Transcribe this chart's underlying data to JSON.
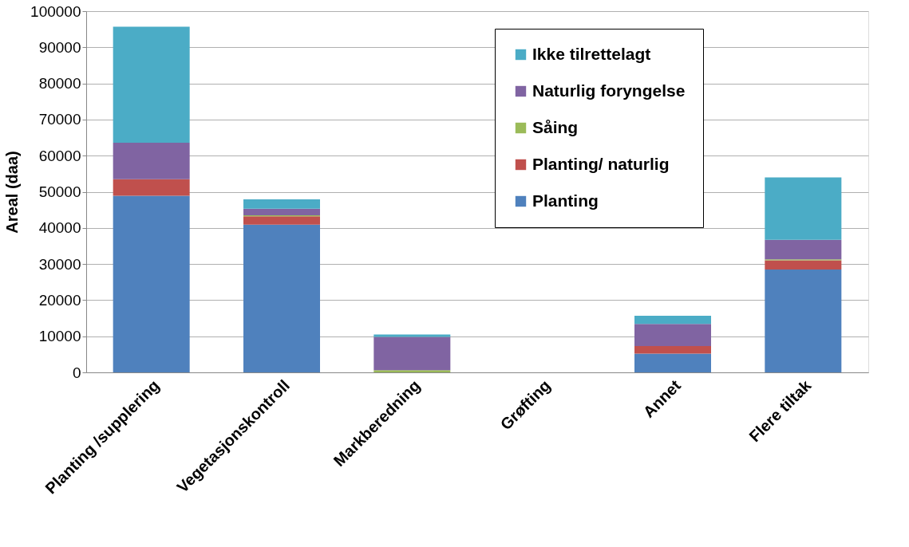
{
  "chart_data": {
    "type": "bar",
    "stacked": true,
    "ylabel": "Areal (daa)",
    "categories": [
      "Planting /supplering",
      "Vegetasjonskontroll",
      "Markberedning",
      "Grøfting",
      "Annet",
      "Flere tiltak"
    ],
    "series": [
      {
        "name": "Planting",
        "color": "#4f81bd",
        "values": [
          48900,
          40900,
          0,
          0,
          5200,
          28500
        ]
      },
      {
        "name": "Planting/ naturlig",
        "color": "#c0504d",
        "values": [
          4600,
          2300,
          0,
          0,
          2100,
          2500
        ]
      },
      {
        "name": "Såing",
        "color": "#9bbb59",
        "values": [
          0,
          300,
          600,
          0,
          0,
          300
        ]
      },
      {
        "name": "Naturlig foryngelse",
        "color": "#8064a2",
        "values": [
          10100,
          1800,
          9200,
          0,
          6100,
          5400
        ]
      },
      {
        "name": "Ikke tilrettelagt",
        "color": "#4bacc6",
        "values": [
          32100,
          2600,
          700,
          0,
          2300,
          17300
        ]
      }
    ],
    "ylim": [
      0,
      100000
    ],
    "yticks": [
      0,
      10000,
      20000,
      30000,
      40000,
      50000,
      60000,
      70000,
      80000,
      90000,
      100000
    ],
    "grid": "y",
    "legend": "top right"
  }
}
